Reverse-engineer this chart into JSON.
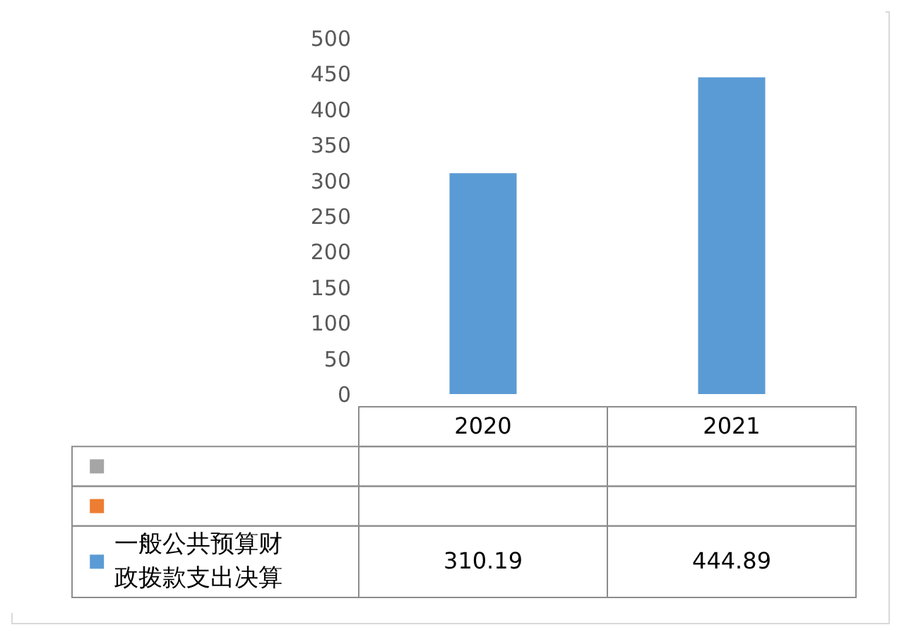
{
  "chart_data": {
    "type": "bar",
    "categories": [
      "2020",
      "2021"
    ],
    "series": [
      {
        "color": "#a5a5a5",
        "values": [
          null,
          null
        ]
      },
      {
        "color": "#ed7d31",
        "values": [
          null,
          null
        ]
      },
      {
        "name": "一般公共预算财政拨款支出决算",
        "color": "#5b9bd5",
        "values": [
          310.19,
          444.89
        ]
      }
    ],
    "ylim": [
      0,
      500
    ],
    "yticks": [
      0,
      50,
      100,
      150,
      200,
      250,
      300,
      350,
      400,
      450,
      500
    ],
    "data_labels": true
  }
}
